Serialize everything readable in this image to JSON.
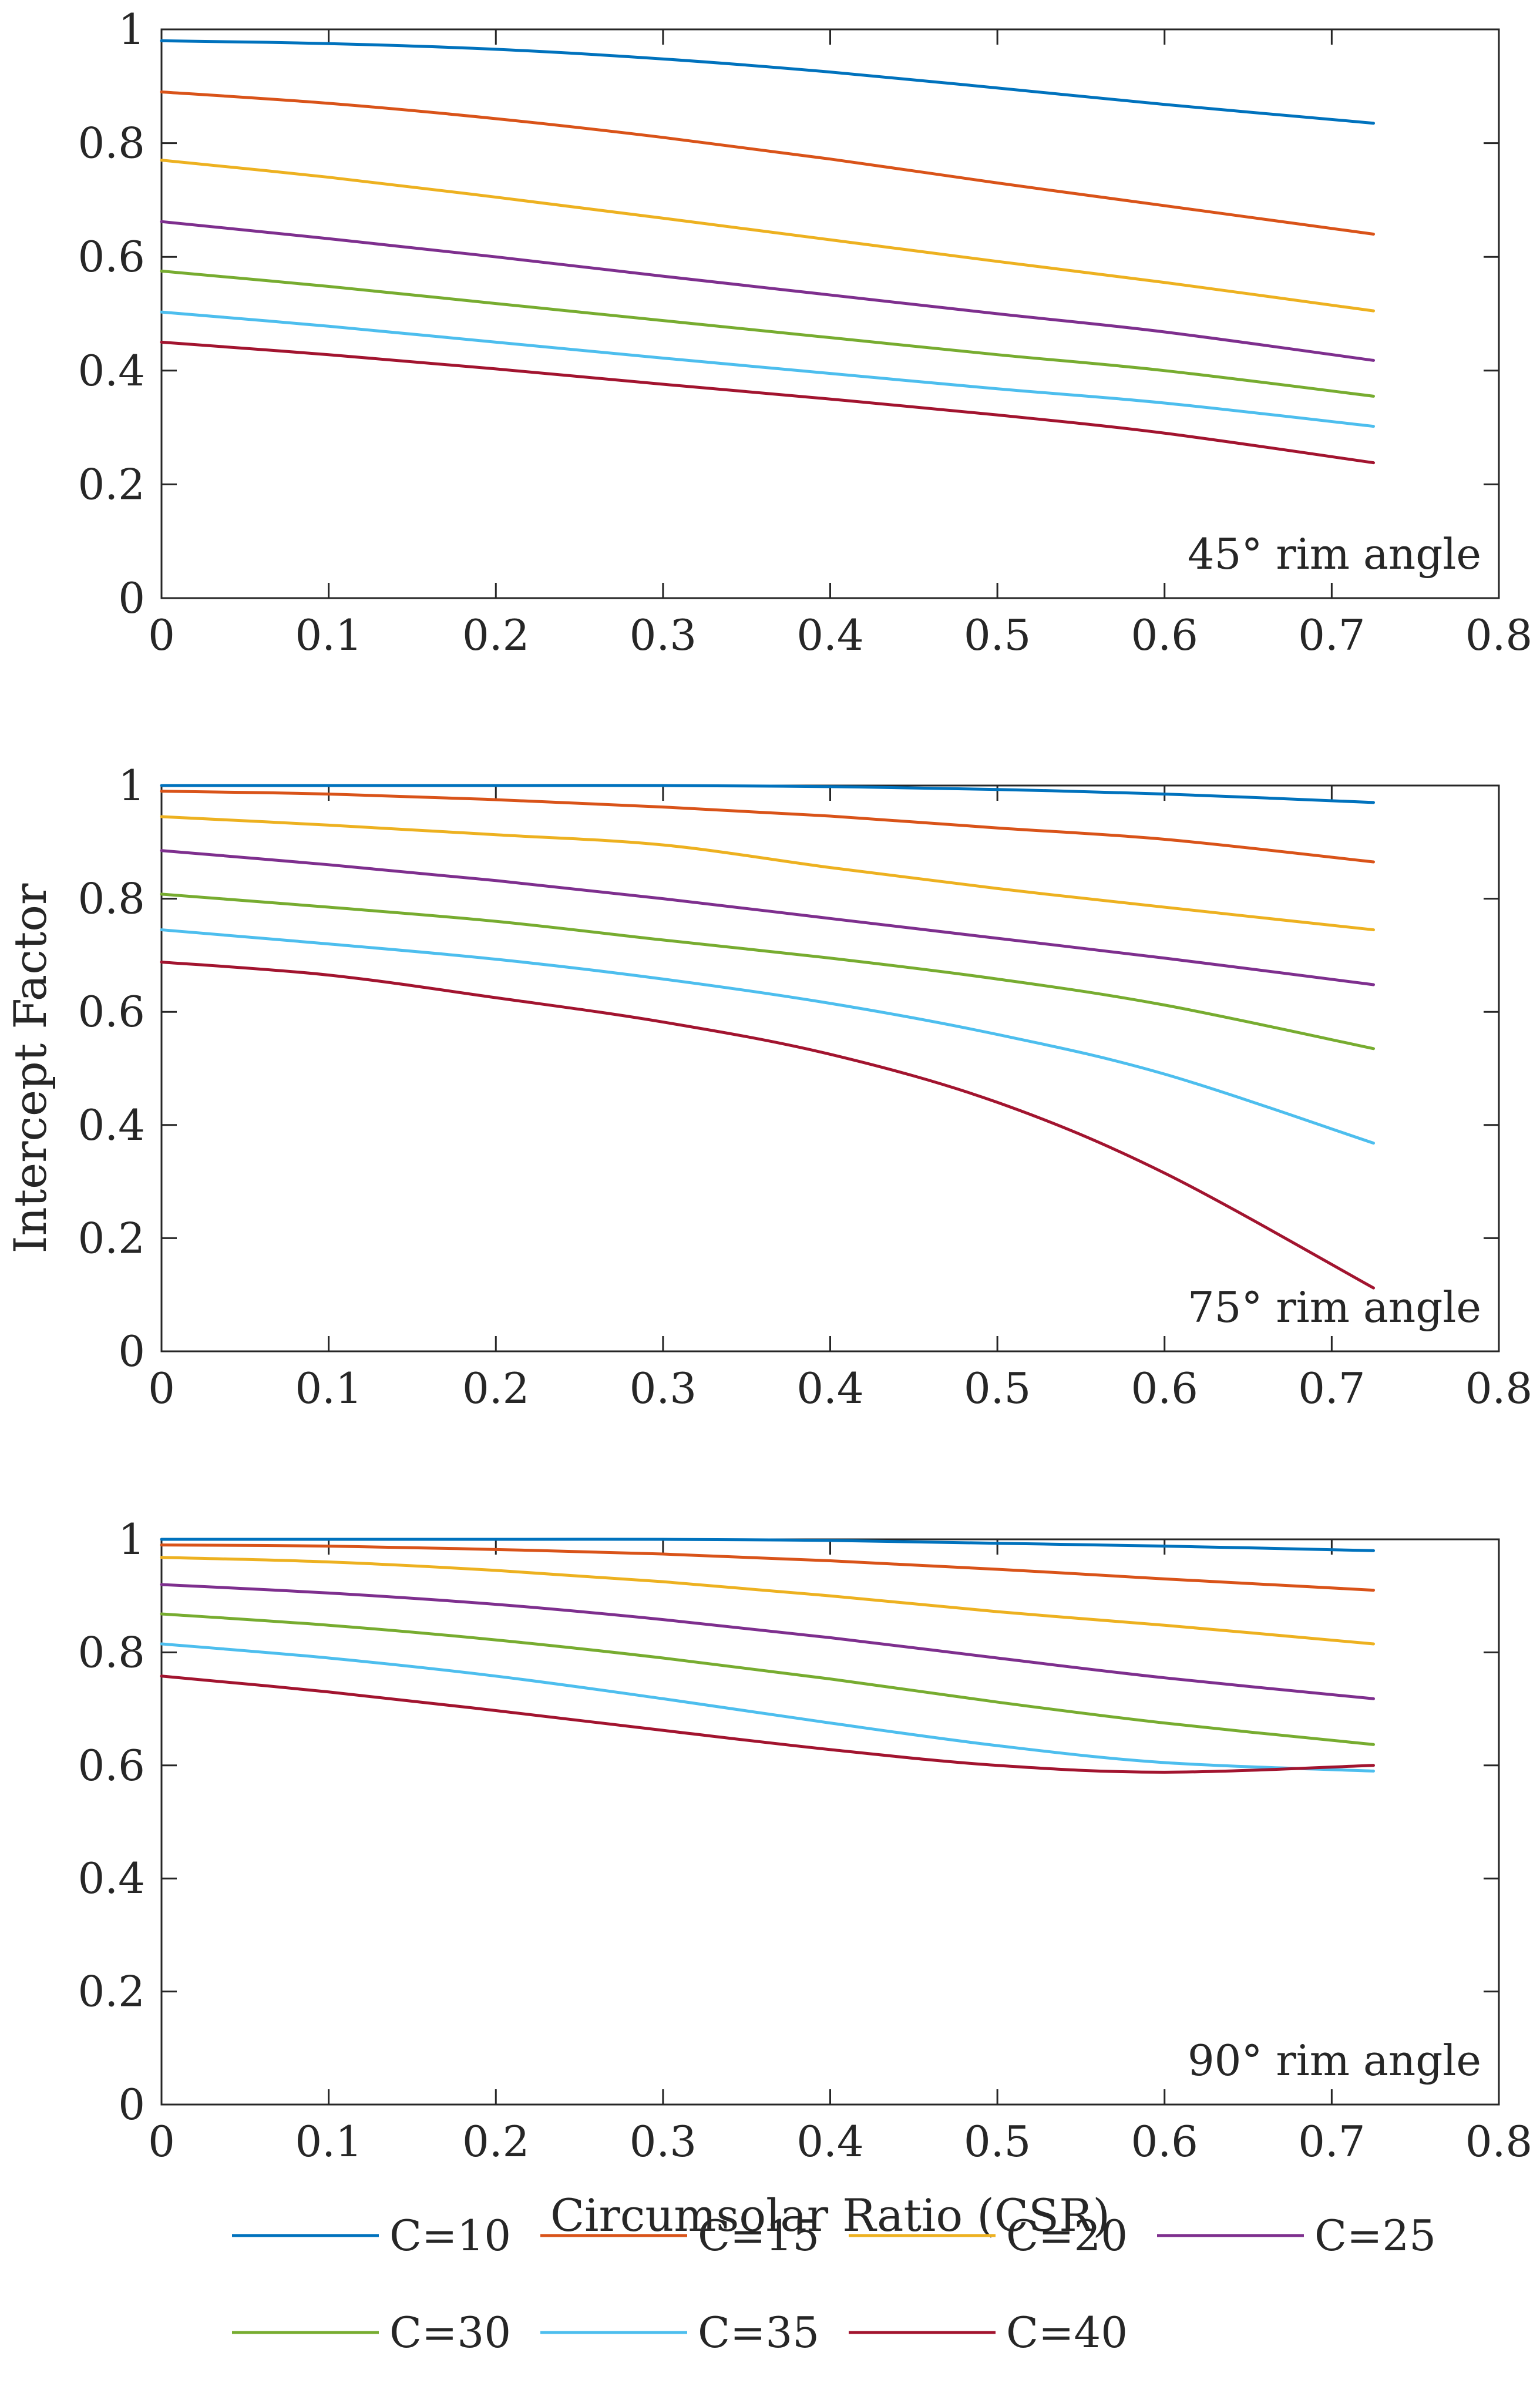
{
  "chart_data": [
    {
      "type": "line",
      "annotation": "45° rim angle",
      "xlabel": "",
      "ylabel": "",
      "xlim": [
        0,
        0.8
      ],
      "ylim": [
        0,
        1
      ],
      "xticks": [
        "0",
        "0.1",
        "0.2",
        "0.3",
        "0.4",
        "0.5",
        "0.6",
        "0.7",
        "0.8"
      ],
      "yticks": [
        "0",
        "0.2",
        "0.4",
        "0.6",
        "0.8",
        "1"
      ],
      "x": [
        0,
        0.1,
        0.2,
        0.3,
        0.4,
        0.5,
        0.6,
        0.725
      ],
      "series": [
        {
          "name": "C=10",
          "values": [
            0.98,
            0.975,
            0.965,
            0.948,
            0.925,
            0.897,
            0.868,
            0.835
          ]
        },
        {
          "name": "C=15",
          "values": [
            0.89,
            0.87,
            0.843,
            0.81,
            0.772,
            0.73,
            0.69,
            0.64
          ]
        },
        {
          "name": "C=20",
          "values": [
            0.77,
            0.74,
            0.705,
            0.668,
            0.63,
            0.592,
            0.555,
            0.505
          ]
        },
        {
          "name": "C=25",
          "values": [
            0.662,
            0.632,
            0.6,
            0.566,
            0.533,
            0.5,
            0.468,
            0.418
          ]
        },
        {
          "name": "C=30",
          "values": [
            0.575,
            0.548,
            0.518,
            0.488,
            0.458,
            0.428,
            0.4,
            0.355
          ]
        },
        {
          "name": "C=35",
          "values": [
            0.503,
            0.478,
            0.45,
            0.422,
            0.395,
            0.368,
            0.343,
            0.302
          ]
        },
        {
          "name": "C=40",
          "values": [
            0.45,
            0.428,
            0.403,
            0.376,
            0.35,
            0.322,
            0.29,
            0.238
          ]
        }
      ]
    },
    {
      "type": "line",
      "annotation": "75° rim angle",
      "xlabel": "",
      "ylabel": "Intercept Factor",
      "xlim": [
        0,
        0.8
      ],
      "ylim": [
        0,
        1
      ],
      "xticks": [
        "0",
        "0.1",
        "0.2",
        "0.3",
        "0.4",
        "0.5",
        "0.6",
        "0.7",
        "0.8"
      ],
      "yticks": [
        "0",
        "0.2",
        "0.4",
        "0.6",
        "0.8",
        "1"
      ],
      "x": [
        0,
        0.1,
        0.2,
        0.3,
        0.4,
        0.5,
        0.6,
        0.725
      ],
      "series": [
        {
          "name": "C=10",
          "values": [
            1.0,
            1.0,
            1.0,
            1.0,
            0.998,
            0.993,
            0.985,
            0.97
          ]
        },
        {
          "name": "C=15",
          "values": [
            0.99,
            0.985,
            0.975,
            0.962,
            0.946,
            0.925,
            0.905,
            0.865
          ]
        },
        {
          "name": "C=20",
          "values": [
            0.945,
            0.93,
            0.913,
            0.895,
            0.855,
            0.818,
            0.785,
            0.745
          ]
        },
        {
          "name": "C=25",
          "values": [
            0.885,
            0.86,
            0.832,
            0.8,
            0.765,
            0.73,
            0.695,
            0.648
          ]
        },
        {
          "name": "C=30",
          "values": [
            0.808,
            0.785,
            0.76,
            0.727,
            0.695,
            0.658,
            0.612,
            0.535
          ]
        },
        {
          "name": "C=35",
          "values": [
            0.745,
            0.72,
            0.693,
            0.658,
            0.615,
            0.56,
            0.49,
            0.368
          ]
        },
        {
          "name": "C=40",
          "values": [
            0.688,
            0.665,
            0.625,
            0.582,
            0.525,
            0.44,
            0.315,
            0.112
          ]
        }
      ]
    },
    {
      "type": "line",
      "annotation": "90° rim angle",
      "xlabel": "Circumsolar Ratio (CSR)",
      "ylabel": "",
      "xlim": [
        0,
        0.8
      ],
      "ylim": [
        0,
        1
      ],
      "xticks": [
        "0",
        "0.1",
        "0.2",
        "0.3",
        "0.4",
        "0.5",
        "0.6",
        "0.7",
        "0.8"
      ],
      "yticks": [
        "0",
        "0.2",
        "0.4",
        "0.6",
        "0.8",
        "1"
      ],
      "x": [
        0,
        0.1,
        0.2,
        0.3,
        0.4,
        0.5,
        0.6,
        0.725
      ],
      "series": [
        {
          "name": "C=10",
          "values": [
            1.0,
            1.0,
            1.0,
            1.0,
            0.998,
            0.993,
            0.988,
            0.98
          ]
        },
        {
          "name": "C=15",
          "values": [
            0.99,
            0.988,
            0.982,
            0.974,
            0.962,
            0.947,
            0.93,
            0.91
          ]
        },
        {
          "name": "C=20",
          "values": [
            0.968,
            0.96,
            0.945,
            0.925,
            0.9,
            0.872,
            0.848,
            0.815
          ]
        },
        {
          "name": "C=25",
          "values": [
            0.92,
            0.905,
            0.885,
            0.858,
            0.826,
            0.79,
            0.755,
            0.718
          ]
        },
        {
          "name": "C=30",
          "values": [
            0.868,
            0.848,
            0.822,
            0.79,
            0.753,
            0.712,
            0.675,
            0.637
          ]
        },
        {
          "name": "C=35",
          "values": [
            0.815,
            0.79,
            0.758,
            0.718,
            0.675,
            0.635,
            0.605,
            0.59
          ]
        },
        {
          "name": "C=40",
          "values": [
            0.758,
            0.73,
            0.697,
            0.662,
            0.628,
            0.6,
            0.588,
            0.6
          ]
        }
      ]
    }
  ],
  "legend": {
    "placement": "bottom",
    "entries": [
      {
        "name": "C=10",
        "color": "#0072BD"
      },
      {
        "name": "C=15",
        "color": "#D95319"
      },
      {
        "name": "C=20",
        "color": "#EDB120"
      },
      {
        "name": "C=25",
        "color": "#7E2F8E"
      },
      {
        "name": "C=30",
        "color": "#77AC30"
      },
      {
        "name": "C=35",
        "color": "#4DBEEE"
      },
      {
        "name": "C=40",
        "color": "#A2142F"
      }
    ]
  }
}
